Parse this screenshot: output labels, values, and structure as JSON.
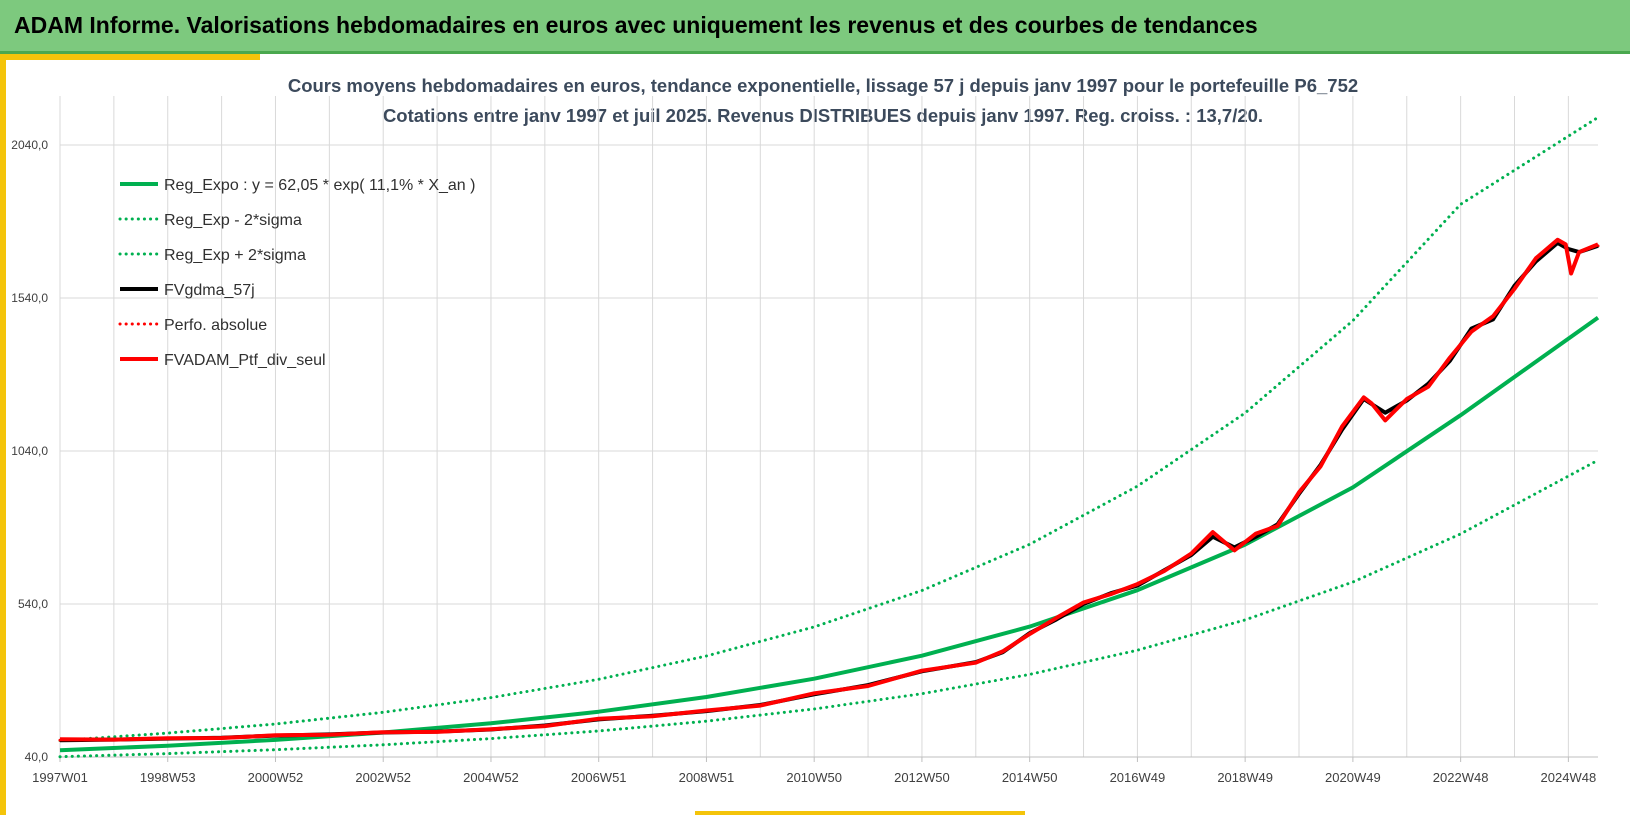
{
  "header": {
    "title": "ADAM Informe. Valorisations hebdomadaires en euros avec uniquement les revenus et des courbes de tendances"
  },
  "colors": {
    "banner": "#7dc97e",
    "accent": "#f4c40a",
    "regression": "#00b050",
    "fvgdma": "#000000",
    "perf": "#ff0000",
    "grid": "#d9d9d9"
  },
  "chart_data": {
    "type": "line",
    "title_lines": [
      "Cours moyens hebdomadaires  en euros, tendance exponentielle, lissage 57 j depuis janv 1997 pour le portefeuille P6_752",
      "Cotations entre janv 1997 et juil 2025. Revenus DISTRIBUES depuis janv 1997. Reg. croiss. : 13,7/20."
    ],
    "xlabel": "",
    "ylabel": "",
    "x_range": [
      1997.0,
      2025.55
    ],
    "ylim": [
      40,
      2200
    ],
    "y_ticks": [
      {
        "value": 40,
        "label": "40,0"
      },
      {
        "value": 540,
        "label": "540,0"
      },
      {
        "value": 1040,
        "label": "1040,0"
      },
      {
        "value": 1540,
        "label": "1540,0"
      },
      {
        "value": 2040,
        "label": "2040,0"
      }
    ],
    "x_ticks": [
      {
        "value": 1997.0,
        "label": "1997W01"
      },
      {
        "value": 1999.0,
        "label": "1998W53"
      },
      {
        "value": 2001.0,
        "label": "2000W52"
      },
      {
        "value": 2003.0,
        "label": "2002W52"
      },
      {
        "value": 2005.0,
        "label": "2004W52"
      },
      {
        "value": 2007.0,
        "label": "2006W51"
      },
      {
        "value": 2009.0,
        "label": "2008W51"
      },
      {
        "value": 2011.0,
        "label": "2010W50"
      },
      {
        "value": 2013.0,
        "label": "2012W50"
      },
      {
        "value": 2015.0,
        "label": "2014W50"
      },
      {
        "value": 2017.0,
        "label": "2016W49"
      },
      {
        "value": 2019.0,
        "label": "2018W49"
      },
      {
        "value": 2021.0,
        "label": "2020W49"
      },
      {
        "value": 2023.0,
        "label": "2022W48"
      },
      {
        "value": 2025.0,
        "label": "2024W48"
      }
    ],
    "grid": true,
    "legend_position": "top-left",
    "series": [
      {
        "name": "Reg_Expo : y = 62,05 * exp( 11,1% *  X_an )",
        "style": "solid",
        "color": "#00b050",
        "width": 4,
        "x": [
          1997,
          1999,
          2001,
          2003,
          2005,
          2007,
          2009,
          2011,
          2013,
          2015,
          2017,
          2019,
          2021,
          2023,
          2025.55
        ],
        "y": [
          62,
          77,
          96,
          120,
          150,
          188,
          236,
          296,
          371,
          466,
          585,
          734,
          921,
          1157,
          1476
        ]
      },
      {
        "name": "Reg_Exp - 2*sigma",
        "style": "dotted",
        "color": "#00b050",
        "width": 3,
        "x": [
          1997,
          1999,
          2001,
          2003,
          2005,
          2007,
          2009,
          2011,
          2013,
          2015,
          2017,
          2019,
          2021,
          2023,
          2025.55
        ],
        "y": [
          41,
          51,
          64,
          80,
          100,
          125,
          157,
          197,
          247,
          310,
          389,
          488,
          612,
          769,
          1010
        ]
      },
      {
        "name": "Reg_Exp + 2*sigma",
        "style": "dotted",
        "color": "#00b050",
        "width": 3,
        "x": [
          1997,
          1999,
          2001,
          2003,
          2005,
          2007,
          2009,
          2011,
          2013,
          2015,
          2017,
          2019,
          2021,
          2023,
          2025.55
        ],
        "y": [
          94,
          118,
          148,
          186,
          234,
          294,
          370,
          465,
          584,
          735,
          925,
          1164,
          1466,
          1846,
          2130
        ]
      },
      {
        "name": "FVgdma_57j",
        "style": "solid",
        "color": "#000000",
        "width": 4,
        "x": [
          1997,
          1998,
          1999,
          2000,
          2001,
          2002,
          2003,
          2004,
          2005,
          2006,
          2007,
          2008,
          2009,
          2010,
          2011,
          2012,
          2013,
          2014,
          2014.5,
          2015,
          2015.5,
          2016,
          2016.5,
          2017,
          2017.5,
          2018,
          2018.4,
          2018.8,
          2019.2,
          2019.6,
          2020,
          2020.4,
          2020.8,
          2021.2,
          2021.6,
          2022.0,
          2022.4,
          2022.8,
          2023.2,
          2023.6,
          2024.0,
          2024.4,
          2024.8,
          2025.0,
          2025.2,
          2025.55
        ],
        "y": [
          95,
          97,
          100,
          103,
          110,
          114,
          120,
          123,
          130,
          143,
          163,
          175,
          190,
          210,
          245,
          275,
          320,
          350,
          382,
          445,
          490,
          540,
          575,
          600,
          650,
          700,
          760,
          725,
          760,
          800,
          900,
          995,
          1110,
          1210,
          1165,
          1205,
          1260,
          1335,
          1440,
          1470,
          1580,
          1660,
          1720,
          1700,
          1690,
          1710
        ]
      },
      {
        "name": "Perfo. absolue",
        "style": "dotted",
        "color": "#ff0000",
        "width": 3,
        "x": [
          1997,
          1998,
          1999,
          2000,
          2001,
          2002,
          2003,
          2004,
          2005,
          2006,
          2007,
          2008,
          2009,
          2010,
          2011,
          2012,
          2013,
          2014,
          2014.5,
          2015,
          2015.5,
          2016,
          2016.5,
          2017,
          2017.5,
          2018,
          2018.4,
          2018.8,
          2019.2,
          2019.6,
          2020,
          2020.4,
          2020.8,
          2021.2,
          2021.6,
          2022.0,
          2022.4,
          2022.8,
          2023.2,
          2023.6,
          2024.0,
          2024.4,
          2024.8,
          2025.0,
          2025.2,
          2025.55
        ],
        "y": [
          95,
          97,
          100,
          103,
          110,
          114,
          120,
          123,
          130,
          143,
          163,
          175,
          190,
          210,
          245,
          275,
          320,
          350,
          382,
          445,
          490,
          540,
          575,
          600,
          650,
          700,
          760,
          725,
          760,
          800,
          900,
          995,
          1110,
          1210,
          1165,
          1205,
          1260,
          1335,
          1440,
          1470,
          1580,
          1660,
          1720,
          1700,
          1690,
          1710
        ]
      },
      {
        "name": "FVADAM_Ptf_div_seul",
        "style": "solid",
        "color": "#ff0000",
        "width": 4,
        "x": [
          1997,
          1998,
          1999,
          2000,
          2001,
          2002,
          2003,
          2004,
          2005,
          2006,
          2007,
          2008,
          2009,
          2010,
          2011,
          2012,
          2013,
          2014,
          2014.5,
          2015,
          2015.5,
          2016,
          2016.5,
          2017,
          2017.5,
          2018,
          2018.4,
          2018.8,
          2019.2,
          2019.6,
          2020,
          2020.4,
          2020.8,
          2021.2,
          2021.35,
          2021.6,
          2022.0,
          2022.4,
          2022.8,
          2023.2,
          2023.6,
          2024.0,
          2024.4,
          2024.8,
          2024.95,
          2025.05,
          2025.2,
          2025.55
        ],
        "y": [
          98,
          97,
          101,
          102,
          111,
          113,
          121,
          122,
          131,
          141,
          165,
          173,
          192,
          208,
          248,
          272,
          322,
          348,
          385,
          442,
          495,
          545,
          572,
          605,
          648,
          705,
          775,
          715,
          770,
          795,
          905,
          990,
          1120,
          1215,
          1195,
          1140,
          1210,
          1250,
          1345,
          1430,
          1480,
          1570,
          1670,
          1730,
          1715,
          1620,
          1690,
          1715
        ]
      }
    ]
  }
}
